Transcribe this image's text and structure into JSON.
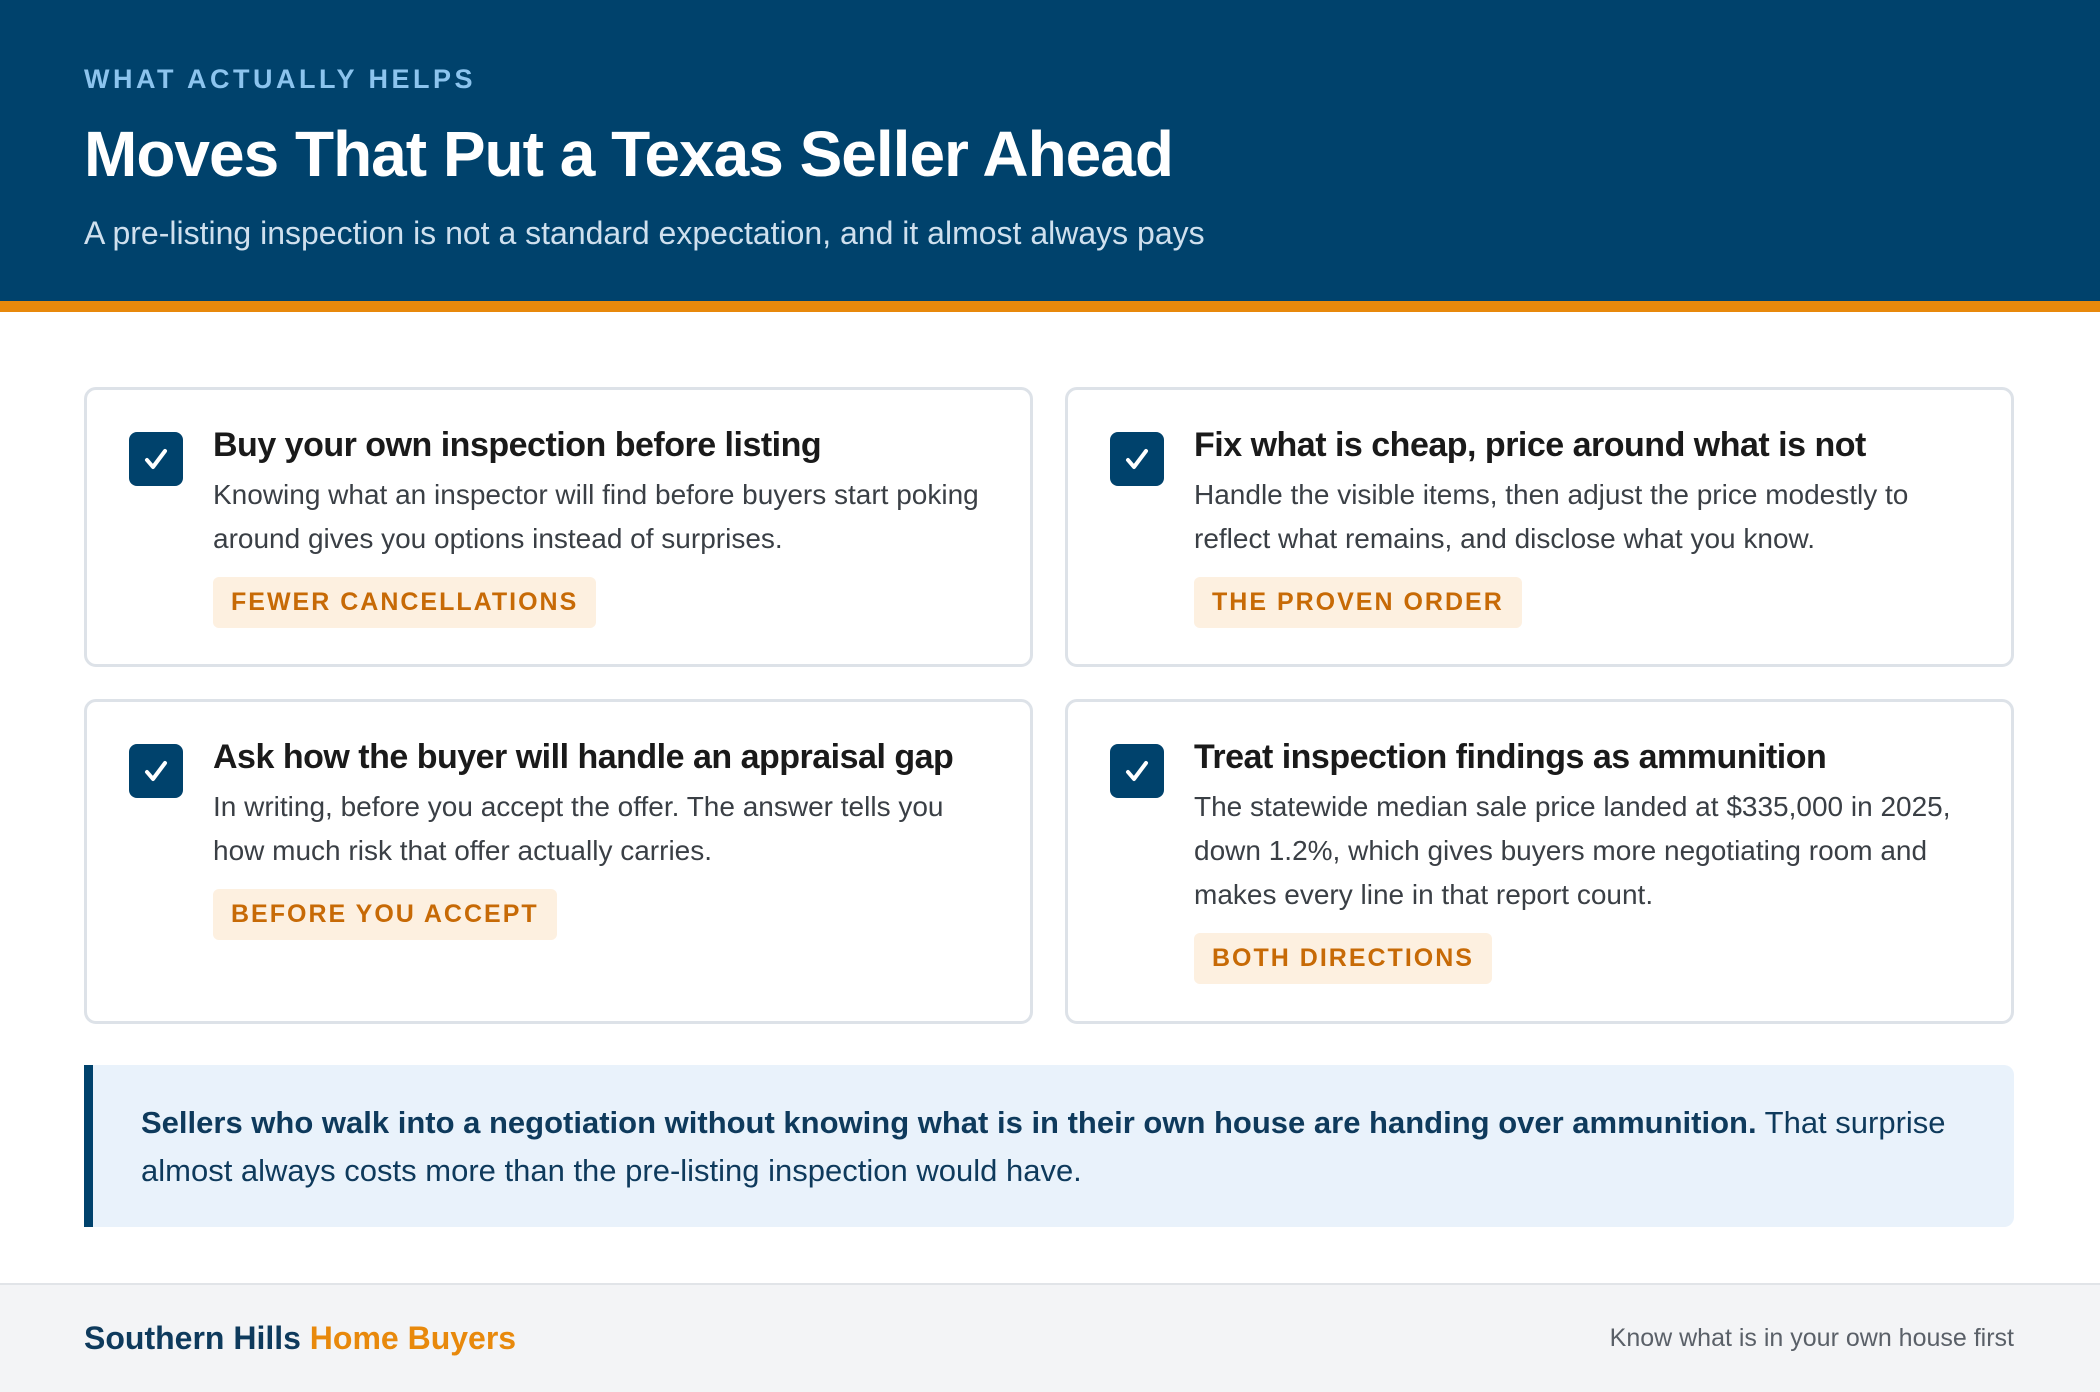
{
  "header": {
    "eyebrow": "WHAT ACTUALLY HELPS",
    "title": "Moves That Put a Texas Seller Ahead",
    "subtitle": "A pre-listing inspection is not a standard expectation, and it almost always pays"
  },
  "cards": [
    {
      "title": "Buy your own inspection before listing",
      "body": "Knowing what an inspector will find before buyers start poking around gives you options instead of surprises.",
      "tag": "FEWER CANCELLATIONS"
    },
    {
      "title": "Fix what is cheap, price around what is not",
      "body": "Handle the visible items, then adjust the price modestly to reflect what remains, and disclose what you know.",
      "tag": "THE PROVEN ORDER"
    },
    {
      "title": "Ask how the buyer will handle an appraisal gap",
      "body": "In writing, before you accept the offer. The answer tells you how much risk that offer actually carries.",
      "tag": "BEFORE YOU ACCEPT"
    },
    {
      "title": "Treat inspection findings as ammunition",
      "body": "The statewide median sale price landed at $335,000 in 2025, down 1.2%, which gives buyers more negotiating room and makes every line in that report count.",
      "tag": "BOTH DIRECTIONS"
    }
  ],
  "callout": {
    "bold": "Sellers who walk into a negotiation without knowing what is in their own house are handing over ammunition.",
    "text": "That surprise almost always costs more than the pre-listing inspection would have."
  },
  "footer": {
    "brand_part1": "Southern Hills",
    "brand_part2": "Home Buyers",
    "tagline": "Know what is in your own house first"
  }
}
